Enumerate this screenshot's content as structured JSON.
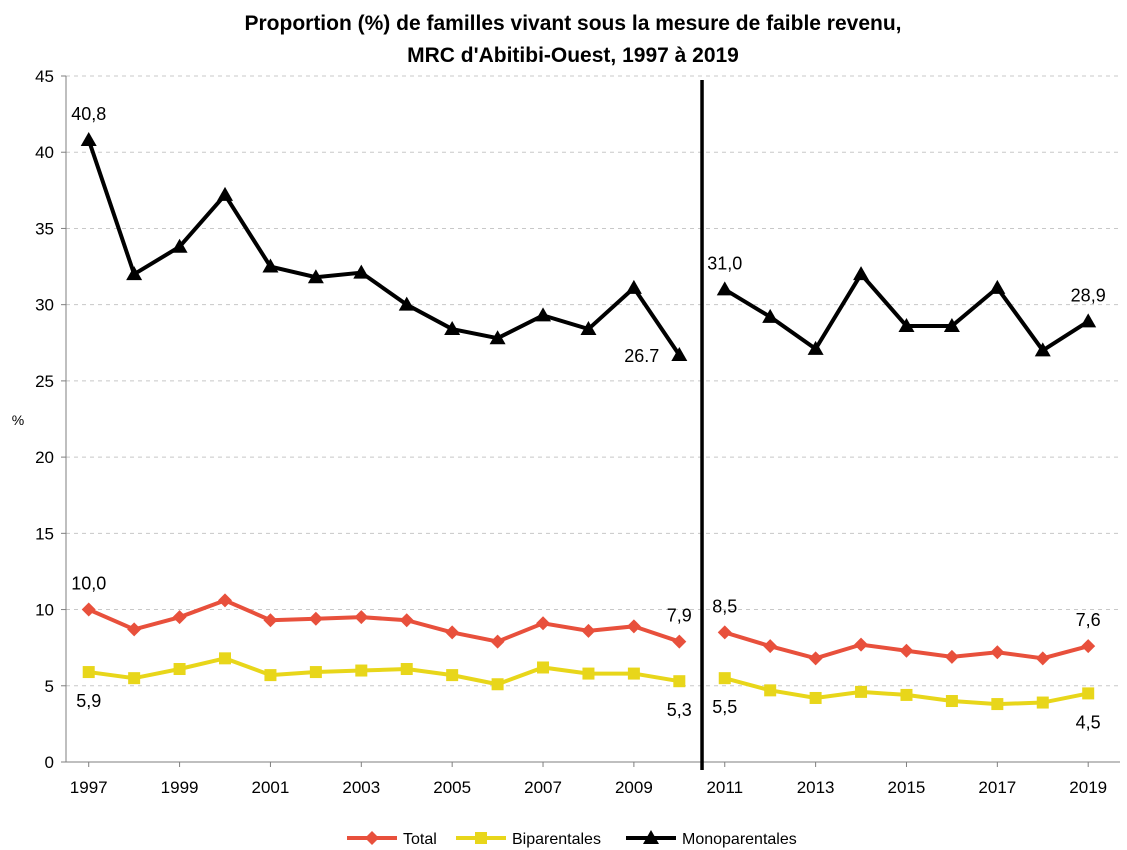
{
  "chart_data": {
    "type": "line",
    "title": [
      "Proportion (%) de familles vivant sous la mesure de faible revenu,",
      "MRC d'Abitibi-Ouest, 1997 à 2019"
    ],
    "ylabel": "%",
    "xlabel": "",
    "ylim": [
      0,
      45
    ],
    "y_ticks": [
      0,
      5,
      10,
      15,
      20,
      25,
      30,
      35,
      40,
      45
    ],
    "x_ticks": [
      1997,
      1999,
      2001,
      2003,
      2005,
      2007,
      2009,
      2011,
      2013,
      2015,
      2017,
      2019
    ],
    "grid": true,
    "break_between": [
      2010,
      2011
    ],
    "legend_position": "bottom",
    "series": [
      {
        "name": "Total",
        "color": "#E8503C",
        "marker": "diamond",
        "points": [
          [
            1997,
            10.0
          ],
          [
            1998,
            8.7
          ],
          [
            1999,
            9.5
          ],
          [
            2000,
            10.6
          ],
          [
            2001,
            9.3
          ],
          [
            2002,
            9.4
          ],
          [
            2003,
            9.5
          ],
          [
            2004,
            9.3
          ],
          [
            2005,
            8.5
          ],
          [
            2006,
            7.9
          ],
          [
            2007,
            9.1
          ],
          [
            2008,
            8.6
          ],
          [
            2009,
            8.9
          ],
          [
            2010,
            7.9
          ],
          [
            2011,
            8.5
          ],
          [
            2012,
            7.6
          ],
          [
            2013,
            6.8
          ],
          [
            2014,
            7.7
          ],
          [
            2015,
            7.3
          ],
          [
            2016,
            6.9
          ],
          [
            2017,
            7.2
          ],
          [
            2018,
            6.8
          ],
          [
            2019,
            7.6
          ]
        ]
      },
      {
        "name": "Biparentales",
        "color": "#E8D61A",
        "marker": "square",
        "points": [
          [
            1997,
            5.9
          ],
          [
            1998,
            5.5
          ],
          [
            1999,
            6.1
          ],
          [
            2000,
            6.8
          ],
          [
            2001,
            5.7
          ],
          [
            2002,
            5.9
          ],
          [
            2003,
            6.0
          ],
          [
            2004,
            6.1
          ],
          [
            2005,
            5.7
          ],
          [
            2006,
            5.1
          ],
          [
            2007,
            6.2
          ],
          [
            2008,
            5.8
          ],
          [
            2009,
            5.8
          ],
          [
            2010,
            5.3
          ],
          [
            2011,
            5.5
          ],
          [
            2012,
            4.7
          ],
          [
            2013,
            4.2
          ],
          [
            2014,
            4.6
          ],
          [
            2015,
            4.4
          ],
          [
            2016,
            4.0
          ],
          [
            2017,
            3.8
          ],
          [
            2018,
            3.9
          ],
          [
            2019,
            4.5
          ]
        ]
      },
      {
        "name": "Monoparentales",
        "color": "#000000",
        "marker": "triangle",
        "points": [
          [
            1997,
            40.8
          ],
          [
            1998,
            32.0
          ],
          [
            1999,
            33.8
          ],
          [
            2000,
            37.2
          ],
          [
            2001,
            32.5
          ],
          [
            2002,
            31.8
          ],
          [
            2003,
            32.1
          ],
          [
            2004,
            30.0
          ],
          [
            2005,
            28.4
          ],
          [
            2006,
            27.8
          ],
          [
            2007,
            29.3
          ],
          [
            2008,
            28.4
          ],
          [
            2009,
            31.1
          ],
          [
            2010,
            26.7
          ],
          [
            2011,
            31.0
          ],
          [
            2012,
            29.2
          ],
          [
            2013,
            27.1
          ],
          [
            2014,
            32.0
          ],
          [
            2015,
            28.6
          ],
          [
            2016,
            28.6
          ],
          [
            2017,
            31.1
          ],
          [
            2018,
            27.0
          ],
          [
            2019,
            28.9
          ]
        ]
      }
    ],
    "annotations": [
      {
        "text": "40,8",
        "x": 1997,
        "y": 40.8,
        "pos": "above"
      },
      {
        "text": "26.7",
        "x": 2010,
        "y": 26.7,
        "pos": "left"
      },
      {
        "text": "31,0",
        "x": 2011,
        "y": 31.0,
        "pos": "above"
      },
      {
        "text": "28,9",
        "x": 2019,
        "y": 28.9,
        "pos": "above"
      },
      {
        "text": "10,0",
        "x": 1997,
        "y": 10.0,
        "pos": "above"
      },
      {
        "text": "7,9",
        "x": 2010,
        "y": 7.9,
        "pos": "above"
      },
      {
        "text": "8,5",
        "x": 2011,
        "y": 8.5,
        "pos": "above"
      },
      {
        "text": "7,6",
        "x": 2019,
        "y": 7.6,
        "pos": "above"
      },
      {
        "text": "5,9",
        "x": 1997,
        "y": 5.9,
        "pos": "below"
      },
      {
        "text": "5,3",
        "x": 2010,
        "y": 5.3,
        "pos": "below"
      },
      {
        "text": "5,5",
        "x": 2011,
        "y": 5.5,
        "pos": "below"
      },
      {
        "text": "4,5",
        "x": 2019,
        "y": 4.5,
        "pos": "below"
      }
    ]
  }
}
